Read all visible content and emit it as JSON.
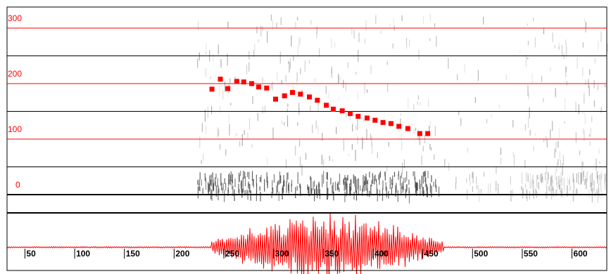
{
  "chart_data": {
    "type": "scatter",
    "color": "#ff0000",
    "x": [
      238,
      246.5,
      254,
      263,
      270,
      278,
      285,
      293,
      302,
      311,
      319,
      327,
      336,
      344,
      353,
      360,
      369,
      377,
      385,
      394,
      402,
      410,
      418,
      426,
      435,
      447,
      455
    ],
    "values": [
      190,
      208,
      191,
      204,
      203,
      200,
      194,
      192,
      172,
      178,
      184,
      181,
      176,
      170,
      161,
      154,
      151,
      146,
      141,
      138,
      134,
      130,
      128,
      123,
      119,
      110,
      110
    ],
    "xlim": [
      32,
      635
    ],
    "ylim": [
      0,
      338
    ],
    "yticks": [
      0,
      100,
      200,
      300
    ],
    "minor_yticks": [
      50,
      150,
      250
    ],
    "xticks": [
      50,
      100,
      150,
      200,
      250,
      300,
      350,
      400,
      450,
      500,
      550,
      600
    ],
    "grid": true
  }
}
